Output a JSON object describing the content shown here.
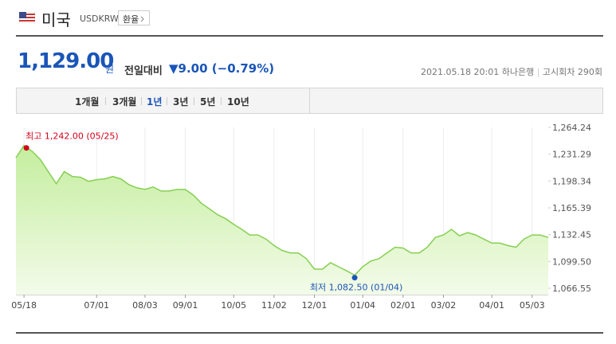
{
  "header": {
    "country": "미국",
    "code": "USDKRW",
    "button": "환율"
  },
  "quote": {
    "price": "1,129.00",
    "unit": "원",
    "change_label": "전일대비",
    "change": "▼9.00 (−0.79%)",
    "timestamp": "2021.05.18 20:01",
    "bank": "하나은행",
    "round": "고시회차 290회"
  },
  "tabs": [
    "1개월",
    "3개월",
    "1년",
    "3년",
    "5년",
    "10년"
  ],
  "chart_data": {
    "type": "area",
    "categories": [
      null,
      "05/18",
      null,
      null,
      null,
      null,
      null,
      null,
      null,
      null,
      "07/01",
      null,
      null,
      null,
      null,
      null,
      "08/03",
      null,
      null,
      null,
      null,
      "09/01",
      null,
      null,
      null,
      null,
      null,
      "10/05",
      null,
      null,
      null,
      null,
      "11/02",
      null,
      null,
      null,
      null,
      "12/01",
      null,
      null,
      null,
      null,
      null,
      "01/04",
      null,
      null,
      null,
      null,
      "02/01",
      null,
      null,
      null,
      null,
      "03/02",
      null,
      null,
      null,
      null,
      null,
      "04/01",
      null,
      null,
      null,
      null,
      "05/03",
      null,
      null
    ],
    "values": [
      1227,
      1242,
      1235,
      1225,
      1210,
      1195,
      1210,
      1204,
      1203,
      1198,
      1200,
      1201,
      1204,
      1201,
      1194,
      1190,
      1188,
      1191,
      1186,
      1186,
      1188,
      1188,
      1181,
      1171,
      1164,
      1157,
      1152,
      1145,
      1139,
      1132,
      1132,
      1127,
      1119,
      1113,
      1110,
      1110,
      1103,
      1090,
      1090,
      1098,
      1093,
      1088,
      1082.5,
      1093,
      1100,
      1103,
      1110,
      1117,
      1116,
      1110,
      1110,
      1117,
      1129,
      1132,
      1139,
      1131,
      1135,
      1132,
      1127,
      1122,
      1122,
      1119,
      1117,
      1127,
      1132,
      1132,
      1129
    ],
    "color": "#86cf52",
    "ylim": [
      1066.55,
      1264.24
    ],
    "yticks": [
      {
        "value": 1264.24,
        "label": "1,264.24"
      },
      {
        "value": 1231.29,
        "label": "1,231.29"
      },
      {
        "value": 1198.34,
        "label": "1,198.34"
      },
      {
        "value": 1165.39,
        "label": "1,165.39"
      },
      {
        "value": 1132.45,
        "label": "1,132.45"
      },
      {
        "value": 1099.5,
        "label": "1,099.50"
      },
      {
        "value": 1066.55,
        "label": "1,066.55"
      }
    ],
    "annotations": {
      "max": "최고 1,242.00 (05/25)",
      "min": "최저 1,082.50 (01/04)"
    }
  }
}
